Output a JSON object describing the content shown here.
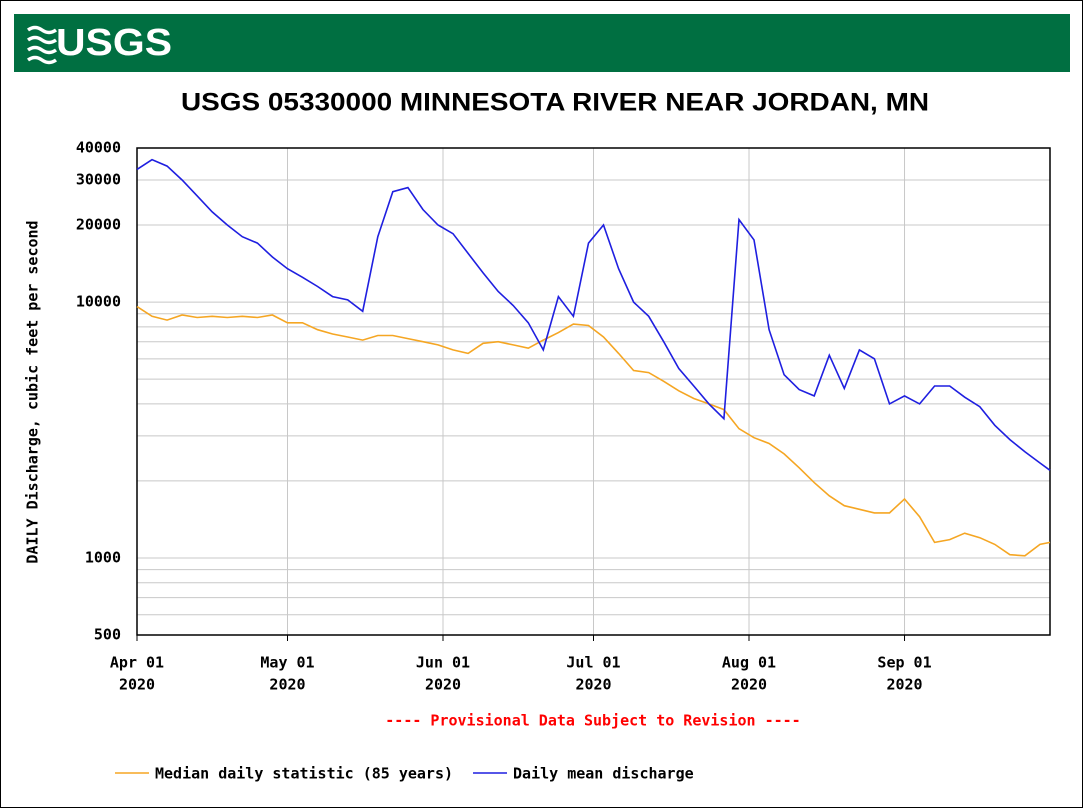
{
  "chart_data": {
    "type": "line",
    "logo": "USGS",
    "title": "USGS 05330000 MINNESOTA RIVER NEAR JORDAN, MN",
    "ylabel": "DAILY Discharge, cubic feet per second",
    "annotation": "---- Provisional Data Subject to Revision ----",
    "log_y": true,
    "grid": true,
    "legend": "bottom",
    "ylim": [
      500,
      40000
    ],
    "yticks": [
      500,
      1000,
      10000,
      20000,
      30000,
      40000
    ],
    "yminor": [
      600,
      700,
      800,
      900,
      2000,
      3000,
      4000,
      5000,
      6000,
      7000,
      8000,
      9000
    ],
    "xlim": [
      "2020-04-01",
      "2020-09-30"
    ],
    "xticks": [
      {
        "value": "2020-04-01",
        "label": [
          "Apr 01",
          "2020"
        ]
      },
      {
        "value": "2020-05-01",
        "label": [
          "May 01",
          "2020"
        ]
      },
      {
        "value": "2020-06-01",
        "label": [
          "Jun 01",
          "2020"
        ]
      },
      {
        "value": "2020-07-01",
        "label": [
          "Jul 01",
          "2020"
        ]
      },
      {
        "value": "2020-08-01",
        "label": [
          "Aug 01",
          "2020"
        ]
      },
      {
        "value": "2020-09-01",
        "label": [
          "Sep 01",
          "2020"
        ]
      }
    ],
    "x": [
      "2020-04-01",
      "2020-04-04",
      "2020-04-07",
      "2020-04-10",
      "2020-04-13",
      "2020-04-16",
      "2020-04-19",
      "2020-04-22",
      "2020-04-25",
      "2020-04-28",
      "2020-05-01",
      "2020-05-04",
      "2020-05-07",
      "2020-05-10",
      "2020-05-13",
      "2020-05-16",
      "2020-05-19",
      "2020-05-22",
      "2020-05-25",
      "2020-05-28",
      "2020-05-31",
      "2020-06-03",
      "2020-06-06",
      "2020-06-09",
      "2020-06-12",
      "2020-06-15",
      "2020-06-18",
      "2020-06-21",
      "2020-06-24",
      "2020-06-27",
      "2020-06-30",
      "2020-07-03",
      "2020-07-06",
      "2020-07-09",
      "2020-07-12",
      "2020-07-15",
      "2020-07-18",
      "2020-07-21",
      "2020-07-24",
      "2020-07-27",
      "2020-07-30",
      "2020-08-02",
      "2020-08-05",
      "2020-08-08",
      "2020-08-11",
      "2020-08-14",
      "2020-08-17",
      "2020-08-20",
      "2020-08-23",
      "2020-08-26",
      "2020-08-29",
      "2020-09-01",
      "2020-09-04",
      "2020-09-07",
      "2020-09-10",
      "2020-09-13",
      "2020-09-16",
      "2020-09-19",
      "2020-09-22",
      "2020-09-25",
      "2020-09-28",
      "2020-09-30"
    ],
    "series": [
      {
        "name": "Median daily statistic (85 years)",
        "color": "#f5a623",
        "values": [
          9600,
          8800,
          8500,
          8900,
          8700,
          8800,
          8700,
          8800,
          8700,
          8900,
          8300,
          8300,
          7800,
          7500,
          7300,
          7100,
          7400,
          7400,
          7200,
          7000,
          6800,
          6500,
          6300,
          6900,
          7000,
          6800,
          6600,
          7100,
          7600,
          8200,
          8100,
          7300,
          6300,
          5400,
          5300,
          4900,
          4500,
          4200,
          4000,
          3800,
          3200,
          2950,
          2800,
          2550,
          2250,
          1970,
          1750,
          1600,
          1550,
          1500,
          1500,
          1700,
          1450,
          1150,
          1180,
          1250,
          1200,
          1130,
          1030,
          1020,
          1130,
          1150
        ]
      },
      {
        "name": "Daily mean discharge",
        "color": "#1f1fe0",
        "values": [
          33000,
          36000,
          34000,
          30000,
          26000,
          22500,
          20000,
          18000,
          17000,
          15000,
          13500,
          12500,
          11500,
          10500,
          10200,
          9200,
          18000,
          27000,
          28000,
          23000,
          20000,
          18500,
          15500,
          13000,
          11000,
          9700,
          8300,
          6500,
          10500,
          8800,
          17000,
          20000,
          13500,
          10000,
          8800,
          7000,
          5500,
          4700,
          4000,
          3500,
          21000,
          17500,
          7800,
          5200,
          4550,
          4300,
          6200,
          4600,
          6500,
          6000,
          4000,
          4300,
          4000,
          4700,
          4700,
          4250,
          3900,
          3300,
          2900,
          2600,
          2350,
          2200
        ]
      }
    ]
  }
}
